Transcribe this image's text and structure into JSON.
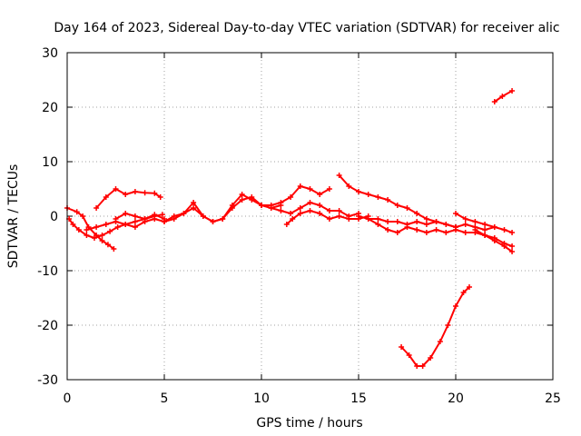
{
  "chart_data": {
    "type": "line",
    "title": "Day 164 of 2023, Sidereal Day-to-day VTEC variation (SDTVAR) for receiver alic",
    "xlabel": "GPS time / hours",
    "ylabel": "SDTVAR / TECUs",
    "xlim": [
      0,
      25
    ],
    "ylim": [
      -30,
      30
    ],
    "xticks": [
      0,
      5,
      10,
      15,
      20,
      25
    ],
    "yticks": [
      -30,
      -20,
      -10,
      0,
      10,
      20,
      30
    ],
    "grid": true,
    "color": "#ff0000",
    "series": [
      {
        "name": "s1",
        "x": [
          0.0,
          0.5,
          0.8,
          1.1,
          1.5,
          1.8,
          2.1,
          2.4
        ],
        "y": [
          1.5,
          0.8,
          0.0,
          -2.0,
          -3.5,
          -4.5,
          -5.2,
          -6.0
        ]
      },
      {
        "name": "s2",
        "x": [
          0.1,
          0.3,
          0.6,
          1.0,
          1.4,
          1.8,
          2.2,
          2.6,
          3.0,
          3.5,
          4.0,
          4.5,
          4.9
        ],
        "y": [
          -0.5,
          -1.5,
          -2.5,
          -3.5,
          -4.0,
          -3.5,
          -2.8,
          -2.0,
          -1.5,
          -1.0,
          -0.5,
          0.0,
          0.3
        ]
      },
      {
        "name": "s3",
        "x": [
          1.5,
          2.0,
          2.5,
          3.0,
          3.5,
          4.0,
          4.5,
          4.8
        ],
        "y": [
          1.5,
          3.5,
          5.0,
          4.0,
          4.5,
          4.3,
          4.2,
          3.5
        ]
      },
      {
        "name": "s4",
        "x": [
          1.0,
          1.5,
          2.0,
          2.5,
          3.0,
          3.5,
          4.0,
          4.5,
          5.0,
          5.5,
          6.0,
          6.5,
          7.0,
          7.5,
          8.0,
          8.5,
          9.0,
          9.5,
          10.0,
          10.5,
          11.0
        ],
        "y": [
          -2.5,
          -2.0,
          -1.5,
          -1.0,
          -1.5,
          -2.0,
          -1.0,
          -0.5,
          -1.0,
          -0.5,
          0.5,
          1.5,
          0.0,
          -1.0,
          -0.5,
          1.5,
          3.0,
          3.5,
          2.0,
          1.5,
          2.0
        ]
      },
      {
        "name": "s5",
        "x": [
          2.5,
          3.0,
          3.5,
          4.0,
          4.5,
          5.0
        ],
        "y": [
          -0.5,
          0.5,
          0.0,
          -0.5,
          0.3,
          -0.5
        ]
      },
      {
        "name": "s6",
        "x": [
          5.0,
          5.5,
          6.0,
          6.5,
          7.0,
          7.5,
          8.0,
          8.5,
          9.0,
          9.5,
          10.0
        ],
        "y": [
          -1.0,
          0.0,
          0.5,
          2.5,
          0.0,
          -1.0,
          -0.5,
          2.0,
          4.0,
          3.0,
          2.0
        ]
      },
      {
        "name": "s7",
        "x": [
          10.0,
          10.5,
          11.0,
          11.5,
          12.0,
          12.5,
          13.0,
          13.5
        ],
        "y": [
          2.0,
          2.0,
          2.5,
          3.5,
          5.5,
          5.0,
          4.0,
          5.0
        ]
      },
      {
        "name": "s8",
        "x": [
          10.5,
          11.0,
          11.5,
          12.0,
          12.5,
          13.0,
          13.5,
          14.0,
          14.5,
          15.0
        ],
        "y": [
          1.5,
          1.0,
          0.5,
          1.5,
          2.5,
          2.0,
          1.0,
          1.0,
          0.0,
          0.5
        ]
      },
      {
        "name": "s9",
        "x": [
          11.3,
          11.6,
          12.0,
          12.5,
          13.0,
          13.5,
          14.0,
          14.5,
          15.0,
          15.5
        ],
        "y": [
          -1.5,
          -0.5,
          0.5,
          1.0,
          0.5,
          -0.5,
          0.0,
          -0.5,
          -0.5,
          0.0
        ]
      },
      {
        "name": "s10",
        "x": [
          14.0,
          14.5,
          15.0,
          15.5,
          16.0,
          16.5,
          17.0,
          17.5,
          18.0,
          18.5,
          19.0,
          19.5,
          20.0
        ],
        "y": [
          7.5,
          5.5,
          4.5,
          4.0,
          3.5,
          3.0,
          2.0,
          1.5,
          0.5,
          -0.5,
          -1.0,
          -1.5,
          -2.0
        ]
      },
      {
        "name": "s11",
        "x": [
          15.0,
          15.5,
          16.0,
          16.5,
          17.0,
          17.5,
          18.0,
          18.5,
          19.0,
          19.5,
          20.0,
          20.5
        ],
        "y": [
          0.0,
          -0.5,
          -1.5,
          -2.5,
          -3.0,
          -2.0,
          -2.5,
          -3.0,
          -2.5,
          -3.0,
          -2.5,
          -3.0
        ]
      },
      {
        "name": "s12",
        "x": [
          15.5,
          16.0,
          16.5,
          17.0,
          17.5,
          18.0,
          18.5,
          19.0,
          19.5,
          20.0,
          20.5,
          21.0,
          21.5,
          22.0
        ],
        "y": [
          -0.5,
          -0.5,
          -1.0,
          -1.0,
          -1.5,
          -1.0,
          -1.5,
          -1.0,
          -1.5,
          -2.0,
          -1.5,
          -2.0,
          -2.5,
          -2.0
        ]
      },
      {
        "name": "s13",
        "x": [
          20.0,
          20.5,
          21.0,
          21.5,
          22.0,
          22.5,
          22.9
        ],
        "y": [
          0.5,
          -0.5,
          -1.0,
          -1.5,
          -2.0,
          -2.5,
          -3.0
        ]
      },
      {
        "name": "s14",
        "x": [
          20.5,
          21.0,
          21.5,
          22.0,
          22.5,
          22.9
        ],
        "y": [
          -3.0,
          -3.0,
          -3.5,
          -4.0,
          -5.0,
          -5.5
        ]
      },
      {
        "name": "s15",
        "x": [
          21.0,
          21.5,
          22.0,
          22.5,
          22.9
        ],
        "y": [
          -2.5,
          -3.5,
          -4.5,
          -5.5,
          -6.5
        ]
      },
      {
        "name": "s16",
        "x": [
          17.2,
          17.6,
          18.0,
          18.3,
          18.7,
          19.2,
          19.6,
          20.0,
          20.4,
          20.7
        ],
        "y": [
          -24.0,
          -25.5,
          -27.5,
          -27.5,
          -26.0,
          -23.0,
          -20.0,
          -16.5,
          -14.0,
          -13.0
        ]
      },
      {
        "name": "s17",
        "x": [
          22.0,
          22.4,
          22.9
        ],
        "y": [
          21.0,
          22.0,
          23.0
        ]
      }
    ]
  }
}
